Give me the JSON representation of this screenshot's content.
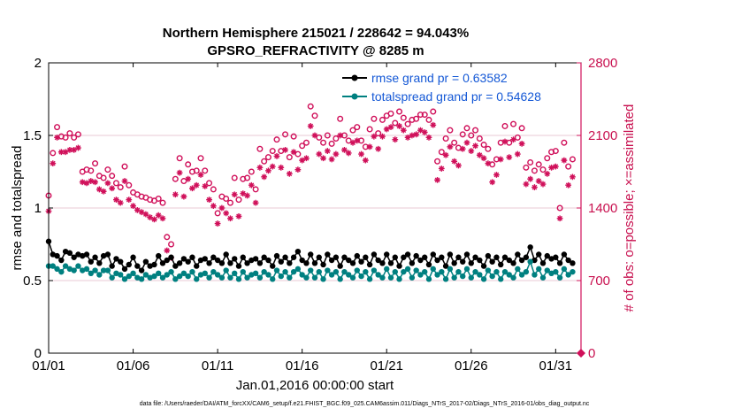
{
  "chart_data": {
    "type": "line",
    "title_line1": "Northern Hemisphere 215021 / 228642 = 94.043%",
    "title_line2": "GPSRO_REFRACTIVITY @ 8285 m",
    "xlabel": "Jan.01,2016 00:00:00 start",
    "ylabel_left": "rmse and totalspread",
    "ylabel_right": "# of obs: o=possible; ×=assimilated",
    "footer": "data file: /Users/raeder/DAI/ATM_forcXX/CAM6_setup/f.e21.FHIST_BGC.f09_025.CAM6assim.011/Diags_NTrS_2017-02/Diags_NTrS_2016-01/obs_diag_output.nc",
    "x_ticks": [
      0,
      5,
      10,
      15,
      20,
      25,
      30
    ],
    "x_tick_labels": [
      "01/01",
      "01/06",
      "01/11",
      "01/16",
      "01/21",
      "01/26",
      "01/31"
    ],
    "xlim": [
      0,
      31.5
    ],
    "ylim_left": [
      0,
      2
    ],
    "y_ticks_left": [
      0,
      0.5,
      1,
      1.5,
      2
    ],
    "y_tick_labels_left": [
      "0",
      "0.5",
      "1",
      "1.5",
      "2"
    ],
    "ylim_right": [
      0,
      2800
    ],
    "y_ticks_right": [
      0,
      700,
      1400,
      2100,
      2800
    ],
    "y_tick_labels_right": [
      "0",
      "700",
      "1400",
      "2100",
      "2800"
    ],
    "legend": [
      {
        "label": "rmse grand pr = 0.63582",
        "color": "#000000"
      },
      {
        "label": "totalspread grand pr = 0.54628",
        "color": "#008080"
      }
    ],
    "colors": {
      "rmse": "#000000",
      "spread": "#008080",
      "obs": "#d0105a",
      "grid": "#e0b8c8"
    },
    "series": [
      {
        "name": "rmse",
        "axis": "left",
        "x": [
          0.0,
          0.25,
          0.5,
          0.75,
          1.0,
          1.25,
          1.5,
          1.75,
          2.0,
          2.25,
          2.5,
          2.75,
          3.0,
          3.25,
          3.5,
          3.75,
          4.0,
          4.25,
          4.5,
          4.75,
          5.0,
          5.25,
          5.5,
          5.75,
          6.0,
          6.25,
          6.5,
          6.75,
          7.0,
          7.25,
          7.5,
          7.75,
          8.0,
          8.25,
          8.5,
          8.75,
          9.0,
          9.25,
          9.5,
          9.75,
          10.0,
          10.25,
          10.5,
          10.75,
          11.0,
          11.25,
          11.5,
          11.75,
          12.0,
          12.25,
          12.5,
          12.75,
          13.0,
          13.25,
          13.5,
          13.75,
          14.0,
          14.25,
          14.5,
          14.75,
          15.0,
          15.25,
          15.5,
          15.75,
          16.0,
          16.25,
          16.5,
          16.75,
          17.0,
          17.25,
          17.5,
          17.75,
          18.0,
          18.25,
          18.5,
          18.75,
          19.0,
          19.25,
          19.5,
          19.75,
          20.0,
          20.25,
          20.5,
          20.75,
          21.0,
          21.25,
          21.5,
          21.75,
          22.0,
          22.25,
          22.5,
          22.75,
          23.0,
          23.25,
          23.5,
          23.75,
          24.0,
          24.25,
          24.5,
          24.75,
          25.0,
          25.25,
          25.5,
          25.75,
          26.0,
          26.25,
          26.5,
          26.75,
          27.0,
          27.25,
          27.5,
          27.75,
          28.0,
          28.25,
          28.5,
          28.75,
          29.0,
          29.25,
          29.5,
          29.75,
          30.0,
          30.25,
          30.5,
          30.75,
          31.0
        ],
        "values": [
          0.77,
          0.68,
          0.67,
          0.64,
          0.7,
          0.69,
          0.66,
          0.68,
          0.67,
          0.68,
          0.63,
          0.66,
          0.62,
          0.67,
          0.68,
          0.6,
          0.65,
          0.63,
          0.58,
          0.61,
          0.66,
          0.6,
          0.57,
          0.63,
          0.6,
          0.61,
          0.67,
          0.62,
          0.64,
          0.66,
          0.6,
          0.62,
          0.65,
          0.63,
          0.66,
          0.6,
          0.64,
          0.65,
          0.62,
          0.66,
          0.64,
          0.62,
          0.68,
          0.62,
          0.65,
          0.6,
          0.66,
          0.62,
          0.64,
          0.65,
          0.62,
          0.66,
          0.64,
          0.6,
          0.67,
          0.63,
          0.66,
          0.62,
          0.66,
          0.7,
          0.64,
          0.62,
          0.68,
          0.62,
          0.66,
          0.61,
          0.68,
          0.64,
          0.66,
          0.6,
          0.66,
          0.64,
          0.62,
          0.67,
          0.63,
          0.66,
          0.61,
          0.68,
          0.64,
          0.62,
          0.68,
          0.62,
          0.66,
          0.6,
          0.66,
          0.68,
          0.62,
          0.67,
          0.64,
          0.66,
          0.61,
          0.68,
          0.64,
          0.66,
          0.6,
          0.68,
          0.62,
          0.66,
          0.63,
          0.68,
          0.62,
          0.66,
          0.64,
          0.6,
          0.67,
          0.63,
          0.66,
          0.61,
          0.66,
          0.64,
          0.62,
          0.68,
          0.64,
          0.66,
          0.73,
          0.64,
          0.68,
          0.62,
          0.67,
          0.65,
          0.66,
          0.62,
          0.68,
          0.64,
          0.62
        ]
      },
      {
        "name": "totalspread",
        "axis": "left",
        "x": [
          0.0,
          0.25,
          0.5,
          0.75,
          1.0,
          1.25,
          1.5,
          1.75,
          2.0,
          2.25,
          2.5,
          2.75,
          3.0,
          3.25,
          3.5,
          3.75,
          4.0,
          4.25,
          4.5,
          4.75,
          5.0,
          5.25,
          5.5,
          5.75,
          6.0,
          6.25,
          6.5,
          6.75,
          7.0,
          7.25,
          7.5,
          7.75,
          8.0,
          8.25,
          8.5,
          8.75,
          9.0,
          9.25,
          9.5,
          9.75,
          10.0,
          10.25,
          10.5,
          10.75,
          11.0,
          11.25,
          11.5,
          11.75,
          12.0,
          12.25,
          12.5,
          12.75,
          13.0,
          13.25,
          13.5,
          13.75,
          14.0,
          14.25,
          14.5,
          14.75,
          15.0,
          15.25,
          15.5,
          15.75,
          16.0,
          16.25,
          16.5,
          16.75,
          17.0,
          17.25,
          17.5,
          17.75,
          18.0,
          18.25,
          18.5,
          18.75,
          19.0,
          19.25,
          19.5,
          19.75,
          20.0,
          20.25,
          20.5,
          20.75,
          21.0,
          21.25,
          21.5,
          21.75,
          22.0,
          22.25,
          22.5,
          22.75,
          23.0,
          23.25,
          23.5,
          23.75,
          24.0,
          24.25,
          24.5,
          24.75,
          25.0,
          25.25,
          25.5,
          25.75,
          26.0,
          26.25,
          26.5,
          26.75,
          27.0,
          27.25,
          27.5,
          27.75,
          28.0,
          28.25,
          28.5,
          28.75,
          29.0,
          29.25,
          29.5,
          29.75,
          30.0,
          30.25,
          30.5,
          30.75,
          31.0
        ],
        "values": [
          0.6,
          0.6,
          0.58,
          0.56,
          0.6,
          0.58,
          0.57,
          0.6,
          0.57,
          0.58,
          0.55,
          0.57,
          0.54,
          0.57,
          0.57,
          0.52,
          0.55,
          0.54,
          0.51,
          0.53,
          0.55,
          0.52,
          0.51,
          0.54,
          0.52,
          0.53,
          0.55,
          0.52,
          0.54,
          0.56,
          0.51,
          0.53,
          0.55,
          0.53,
          0.56,
          0.51,
          0.54,
          0.55,
          0.52,
          0.56,
          0.54,
          0.52,
          0.57,
          0.52,
          0.55,
          0.51,
          0.56,
          0.52,
          0.54,
          0.55,
          0.52,
          0.56,
          0.54,
          0.51,
          0.57,
          0.53,
          0.56,
          0.52,
          0.56,
          0.58,
          0.54,
          0.52,
          0.57,
          0.52,
          0.56,
          0.51,
          0.57,
          0.54,
          0.56,
          0.51,
          0.56,
          0.54,
          0.52,
          0.57,
          0.53,
          0.56,
          0.51,
          0.57,
          0.54,
          0.52,
          0.58,
          0.52,
          0.56,
          0.51,
          0.56,
          0.58,
          0.52,
          0.57,
          0.54,
          0.56,
          0.51,
          0.58,
          0.54,
          0.56,
          0.51,
          0.58,
          0.52,
          0.56,
          0.53,
          0.58,
          0.52,
          0.56,
          0.54,
          0.51,
          0.57,
          0.53,
          0.56,
          0.51,
          0.56,
          0.54,
          0.52,
          0.58,
          0.54,
          0.56,
          0.63,
          0.54,
          0.58,
          0.52,
          0.57,
          0.55,
          0.56,
          0.52,
          0.58,
          0.54,
          0.56
        ]
      },
      {
        "name": "obs possible",
        "axis": "right",
        "marker": "o",
        "x": [
          0.0,
          0.25,
          0.5,
          0.75,
          1.0,
          1.25,
          1.5,
          1.75,
          2.0,
          2.25,
          2.5,
          2.75,
          3.0,
          3.25,
          3.5,
          3.75,
          4.0,
          4.25,
          4.5,
          4.75,
          5.0,
          5.25,
          5.5,
          5.75,
          6.0,
          6.25,
          6.5,
          6.75,
          7.0,
          7.25,
          7.5,
          7.75,
          8.0,
          8.25,
          8.5,
          8.75,
          9.0,
          9.25,
          9.5,
          9.75,
          10.0,
          10.25,
          10.5,
          10.75,
          11.0,
          11.25,
          11.5,
          11.75,
          12.0,
          12.25,
          12.5,
          12.75,
          13.0,
          13.25,
          13.5,
          13.75,
          14.0,
          14.25,
          14.5,
          14.75,
          15.0,
          15.25,
          15.5,
          15.75,
          16.0,
          16.25,
          16.5,
          16.75,
          17.0,
          17.25,
          17.5,
          17.75,
          18.0,
          18.25,
          18.5,
          18.75,
          19.0,
          19.25,
          19.5,
          19.75,
          20.0,
          20.25,
          20.5,
          20.75,
          21.0,
          21.25,
          21.5,
          21.75,
          22.0,
          22.25,
          22.5,
          22.75,
          23.0,
          23.25,
          23.5,
          23.75,
          24.0,
          24.25,
          24.5,
          24.75,
          25.0,
          25.25,
          25.5,
          25.75,
          26.0,
          26.25,
          26.5,
          26.75,
          27.0,
          27.25,
          27.5,
          27.75,
          28.0,
          28.25,
          28.5,
          28.75,
          29.0,
          29.25,
          29.5,
          29.75,
          30.0,
          30.25,
          30.5,
          30.75,
          31.0
        ],
        "values": [
          1520,
          1930,
          2180,
          2090,
          2080,
          2120,
          2080,
          2110,
          1750,
          1770,
          1760,
          1830,
          1710,
          1690,
          1770,
          1710,
          1640,
          1600,
          1800,
          1620,
          1550,
          1530,
          1510,
          1500,
          1480,
          1470,
          1490,
          1450,
          1120,
          1050,
          1680,
          1880,
          1660,
          1820,
          1750,
          1760,
          1880,
          1760,
          1640,
          1580,
          1350,
          1510,
          1490,
          1450,
          1690,
          1480,
          1680,
          1690,
          1750,
          1580,
          1970,
          1850,
          1890,
          1950,
          2060,
          1950,
          2110,
          1890,
          2090,
          1920,
          2000,
          2030,
          2380,
          2290,
          2080,
          2030,
          2100,
          2020,
          2070,
          2260,
          2100,
          2050,
          2150,
          2180,
          2050,
          1990,
          2160,
          2260,
          2120,
          2250,
          2290,
          2310,
          2220,
          2330,
          2270,
          2210,
          2250,
          2260,
          2300,
          2300,
          2250,
          2330,
          1850,
          1940,
          2070,
          2150,
          2030,
          1980,
          2110,
          2170,
          2100,
          2150,
          2070,
          2010,
          1970,
          1820,
          1870,
          2030,
          2190,
          2030,
          2210,
          2080,
          2170,
          1790,
          1840,
          1760,
          1820,
          1770,
          1880,
          1940,
          1950,
          1400,
          2030,
          1800,
          1870
        ]
      },
      {
        "name": "obs assimilated",
        "axis": "right",
        "marker": "x",
        "x": [
          0.0,
          0.25,
          0.5,
          0.75,
          1.0,
          1.25,
          1.5,
          1.75,
          2.0,
          2.25,
          2.5,
          2.75,
          3.0,
          3.25,
          3.5,
          3.75,
          4.0,
          4.25,
          4.5,
          4.75,
          5.0,
          5.25,
          5.5,
          5.75,
          6.0,
          6.25,
          6.5,
          6.75,
          7.0,
          7.25,
          7.5,
          7.75,
          8.0,
          8.25,
          8.5,
          8.75,
          9.0,
          9.25,
          9.5,
          9.75,
          10.0,
          10.25,
          10.5,
          10.75,
          11.0,
          11.25,
          11.5,
          11.75,
          12.0,
          12.25,
          12.5,
          12.75,
          13.0,
          13.25,
          13.5,
          13.75,
          14.0,
          14.25,
          14.5,
          14.75,
          15.0,
          15.25,
          15.5,
          15.75,
          16.0,
          16.25,
          16.5,
          16.75,
          17.0,
          17.25,
          17.5,
          17.75,
          18.0,
          18.25,
          18.5,
          18.75,
          19.0,
          19.25,
          19.5,
          19.75,
          20.0,
          20.25,
          20.5,
          20.75,
          21.0,
          21.25,
          21.5,
          21.75,
          22.0,
          22.25,
          22.5,
          22.75,
          23.0,
          23.25,
          23.5,
          23.75,
          24.0,
          24.25,
          24.5,
          24.75,
          25.0,
          25.25,
          25.5,
          25.75,
          26.0,
          26.25,
          26.5,
          26.75,
          27.0,
          27.25,
          27.5,
          27.75,
          28.0,
          28.25,
          28.5,
          28.75,
          29.0,
          29.25,
          29.5,
          29.75,
          30.0,
          30.25,
          30.5,
          30.75,
          31.0
        ],
        "values": [
          1370,
          1830,
          2080,
          1940,
          1940,
          1960,
          1960,
          1980,
          1650,
          1640,
          1660,
          1650,
          1580,
          1560,
          1640,
          1590,
          1480,
          1450,
          1660,
          1480,
          1420,
          1380,
          1360,
          1340,
          1310,
          1290,
          1330,
          1300,
          990,
          920,
          1530,
          1740,
          1510,
          1680,
          1590,
          1620,
          1720,
          1610,
          1480,
          1420,
          1250,
          1400,
          1350,
          1300,
          1530,
          1320,
          1540,
          1520,
          1620,
          1450,
          1790,
          1700,
          1760,
          1800,
          1900,
          1790,
          1960,
          1730,
          1940,
          1770,
          1860,
          1880,
          2190,
          2100,
          1920,
          1880,
          1950,
          1870,
          1920,
          2100,
          1960,
          1930,
          2030,
          2050,
          1920,
          1860,
          1990,
          2090,
          1970,
          2090,
          2160,
          2180,
          2060,
          2190,
          2150,
          2080,
          2100,
          2110,
          2150,
          2130,
          2080,
          2200,
          1670,
          1780,
          1910,
          1990,
          1850,
          1810,
          1970,
          2030,
          1950,
          2000,
          1910,
          1880,
          1830,
          1650,
          1720,
          1870,
          2040,
          1890,
          2060,
          1920,
          2020,
          1630,
          1680,
          1600,
          1660,
          1630,
          1730,
          1790,
          1800,
          1300,
          1860,
          1620,
          1700
        ]
      }
    ]
  }
}
